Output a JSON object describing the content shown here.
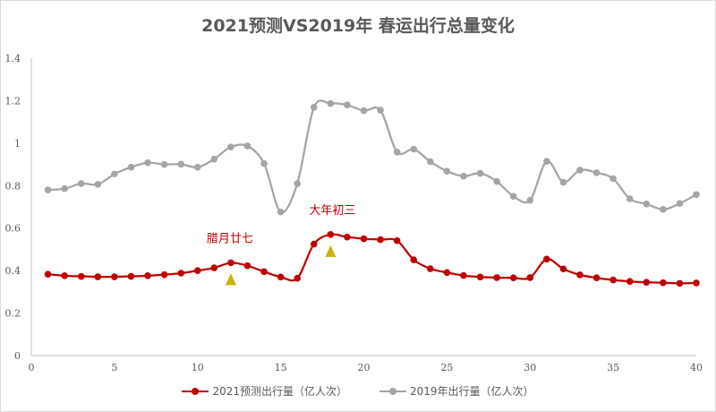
{
  "title": "2021预测VS2019年 春运出行总量变化",
  "colors": {
    "series_2021": "#c00000",
    "series_2019": "#a5a5a5",
    "annotation_text": "#c00000",
    "marker_triangle": "#c9b200",
    "axis": "#bfbfbf",
    "text": "#595959"
  },
  "legend": {
    "items": [
      {
        "label": "2021预测出行量（亿人次）",
        "color": "#c00000"
      },
      {
        "label": "2019年出行量（亿人次）",
        "color": "#a5a5a5"
      }
    ]
  },
  "annotations": [
    {
      "text": "腊月廿七",
      "x": 12,
      "series": "2021预测出行量（亿人次）"
    },
    {
      "text": "大年初三",
      "x": 18,
      "series": "2021预测出行量（亿人次）"
    }
  ],
  "chart_data": {
    "type": "line",
    "title": "2021预测VS2019年 春运出行总量变化",
    "xlabel": "",
    "ylabel": "",
    "xlim": [
      0,
      40
    ],
    "ylim": [
      0,
      1.4
    ],
    "x_ticks": [
      0,
      5,
      10,
      15,
      20,
      25,
      30,
      35,
      40
    ],
    "y_ticks": [
      0,
      0.2,
      0.4,
      0.6,
      0.8,
      1,
      1.2,
      1.4
    ],
    "y_tick_labels": [
      "0",
      "0.2",
      "0.4",
      "0.6",
      "0.8",
      "1",
      "1.2",
      "1.4"
    ],
    "grid": false,
    "smooth": true,
    "legend_position": "bottom",
    "x": [
      1,
      2,
      3,
      4,
      5,
      6,
      7,
      8,
      9,
      10,
      11,
      12,
      13,
      14,
      15,
      16,
      17,
      18,
      19,
      20,
      21,
      22,
      23,
      24,
      25,
      26,
      27,
      28,
      29,
      30,
      31,
      32,
      33,
      34,
      35,
      36,
      37,
      38,
      39,
      40
    ],
    "series": [
      {
        "name": "2021预测出行量（亿人次）",
        "color": "#c00000",
        "values": [
          0.383,
          0.376,
          0.373,
          0.371,
          0.371,
          0.373,
          0.376,
          0.381,
          0.388,
          0.4,
          0.413,
          0.437,
          0.423,
          0.395,
          0.37,
          0.364,
          0.525,
          0.57,
          0.558,
          0.55,
          0.546,
          0.541,
          0.451,
          0.409,
          0.391,
          0.377,
          0.37,
          0.367,
          0.366,
          0.367,
          0.454,
          0.408,
          0.38,
          0.366,
          0.356,
          0.349,
          0.345,
          0.343,
          0.34,
          0.342
        ]
      },
      {
        "name": "2019年出行量（亿人次）",
        "color": "#a5a5a5",
        "values": [
          0.78,
          0.786,
          0.81,
          0.806,
          0.855,
          0.887,
          0.908,
          0.9,
          0.901,
          0.887,
          0.925,
          0.982,
          0.987,
          0.904,
          0.676,
          0.81,
          1.169,
          1.187,
          1.18,
          1.153,
          1.155,
          0.958,
          0.972,
          0.913,
          0.868,
          0.845,
          0.858,
          0.82,
          0.75,
          0.731,
          0.915,
          0.816,
          0.873,
          0.861,
          0.833,
          0.738,
          0.714,
          0.688,
          0.716,
          0.758
        ]
      }
    ],
    "annotations": [
      {
        "text": "腊月廿七",
        "x": 12,
        "marker": "triangle"
      },
      {
        "text": "大年初三",
        "x": 18,
        "marker": "triangle"
      }
    ]
  }
}
